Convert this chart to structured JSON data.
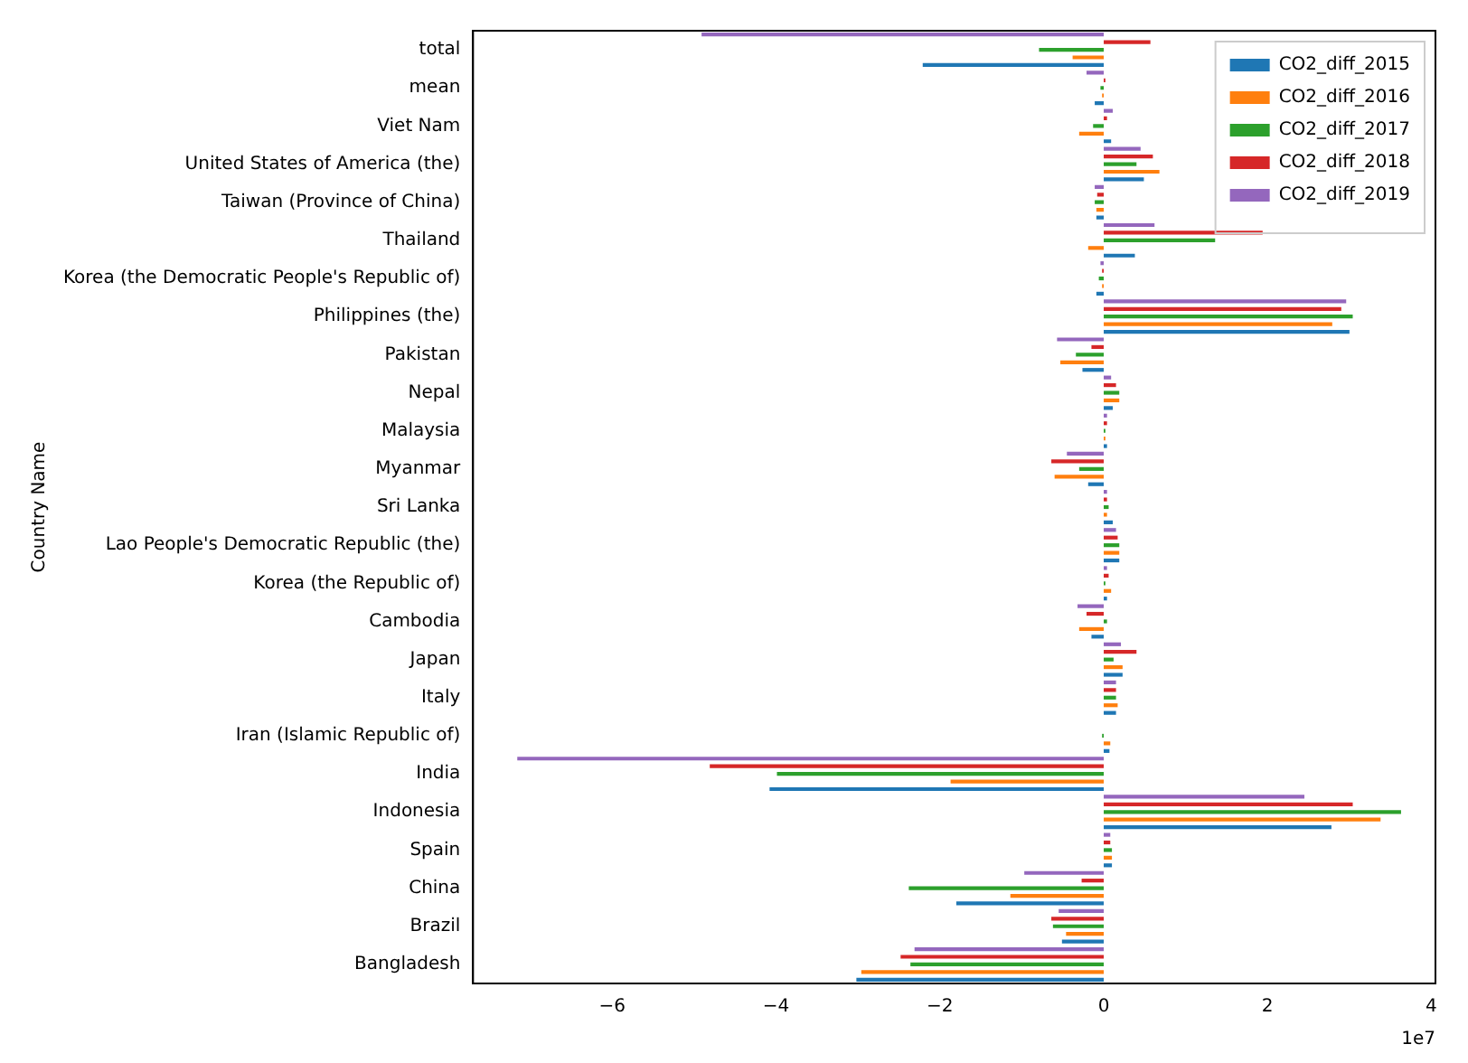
{
  "chart_data": {
    "type": "bar",
    "orientation": "horizontal",
    "ylabel": "Country Name",
    "annotations": [
      "1e7"
    ],
    "categories": [
      "total",
      "mean",
      "Viet Nam",
      "United States of America (the)",
      "Taiwan (Province of China)",
      "Thailand",
      "Korea (the Democratic People's Republic of)",
      "Philippines (the)",
      "Pakistan",
      "Nepal",
      "Malaysia",
      "Myanmar",
      "Sri Lanka",
      "Lao People's Democratic Republic (the)",
      "Korea (the Republic of)",
      "Cambodia",
      "Japan",
      "Italy",
      "Iran (Islamic Republic of)",
      "India",
      "Indonesia",
      "Spain",
      "China",
      "Brazil",
      "Bangladesh"
    ],
    "series": [
      {
        "name": "CO2_diff_2015",
        "color": "#1f77b4",
        "values": [
          -2.21,
          -0.11,
          0.09,
          0.49,
          -0.09,
          0.38,
          -0.09,
          3.0,
          -0.26,
          0.11,
          0.04,
          -0.19,
          0.11,
          0.19,
          0.04,
          -0.15,
          0.23,
          0.15,
          0.07,
          -4.08,
          2.78,
          0.1,
          -1.8,
          -0.51,
          -3.02
        ]
      },
      {
        "name": "CO2_diff_2016",
        "color": "#ff7f0e",
        "values": [
          -0.38,
          -0.02,
          -0.3,
          0.68,
          -0.09,
          -0.19,
          -0.02,
          2.79,
          -0.53,
          0.19,
          0.02,
          -0.6,
          0.04,
          0.19,
          0.09,
          -0.3,
          0.23,
          0.17,
          0.08,
          -1.87,
          3.38,
          0.1,
          -1.14,
          -0.46,
          -2.96
        ]
      },
      {
        "name": "CO2_diff_2017",
        "color": "#2ca02c",
        "values": [
          -0.79,
          -0.04,
          -0.13,
          0.4,
          -0.11,
          1.36,
          -0.06,
          3.04,
          -0.34,
          0.19,
          0.02,
          -0.3,
          0.06,
          0.19,
          0.02,
          0.04,
          0.12,
          0.15,
          -0.02,
          -3.99,
          3.63,
          0.1,
          -2.38,
          -0.62,
          -2.36
        ]
      },
      {
        "name": "CO2_diff_2018",
        "color": "#d62728",
        "values": [
          0.57,
          0.02,
          0.04,
          0.6,
          -0.08,
          1.94,
          -0.02,
          2.9,
          -0.15,
          0.15,
          0.04,
          -0.64,
          0.04,
          0.17,
          0.06,
          -0.21,
          0.4,
          0.15,
          0,
          -4.81,
          3.04,
          0.08,
          -0.27,
          -0.64,
          -2.48
        ]
      },
      {
        "name": "CO2_diff_2019",
        "color": "#9467bd",
        "values": [
          -4.91,
          -0.21,
          0.11,
          0.45,
          -0.11,
          0.62,
          -0.04,
          2.96,
          -0.57,
          0.09,
          0.04,
          -0.45,
          0.04,
          0.15,
          0.04,
          -0.32,
          0.21,
          0.15,
          0,
          -7.16,
          2.45,
          0.08,
          -0.97,
          -0.55,
          -2.31
        ]
      }
    ],
    "xlim": [
      -7.7,
      4.05
    ],
    "xticks": [
      {
        "value": -6,
        "label": "−6"
      },
      {
        "value": -4,
        "label": "−4"
      },
      {
        "value": -2,
        "label": "−2"
      },
      0,
      2,
      4
    ],
    "grid": false,
    "legend": "top right"
  }
}
